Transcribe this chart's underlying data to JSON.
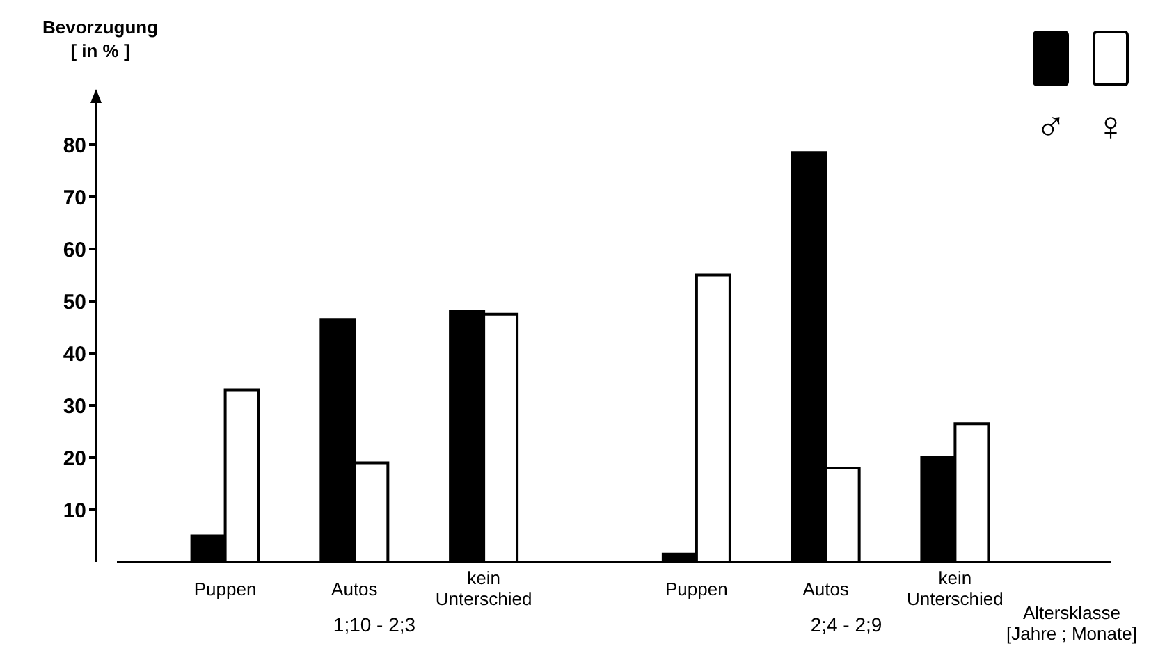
{
  "chart_data": {
    "type": "bar",
    "ylabel": "Bevorzugung\n[ in % ]",
    "categories": [
      "Puppen",
      "Autos",
      "kein Unterschied",
      "Puppen",
      "Autos",
      "kein Unterschied"
    ],
    "series": [
      {
        "name": "♂",
        "color": "#000000",
        "values": [
          5,
          46.5,
          48,
          1.5,
          78.5,
          20
        ]
      },
      {
        "name": "♀",
        "color": "#ffffff",
        "values": [
          33,
          19,
          47.5,
          55,
          18,
          26.5
        ]
      }
    ],
    "ylim": [
      0,
      88
    ],
    "yticks": [
      10,
      20,
      30,
      40,
      50,
      60,
      70,
      80
    ],
    "grid": false,
    "legend": "top right",
    "annotations": [
      "1;10 - 2;3",
      "2;4 - 2;9",
      "Altersklasse\n[Jahre ; Monate]"
    ]
  }
}
